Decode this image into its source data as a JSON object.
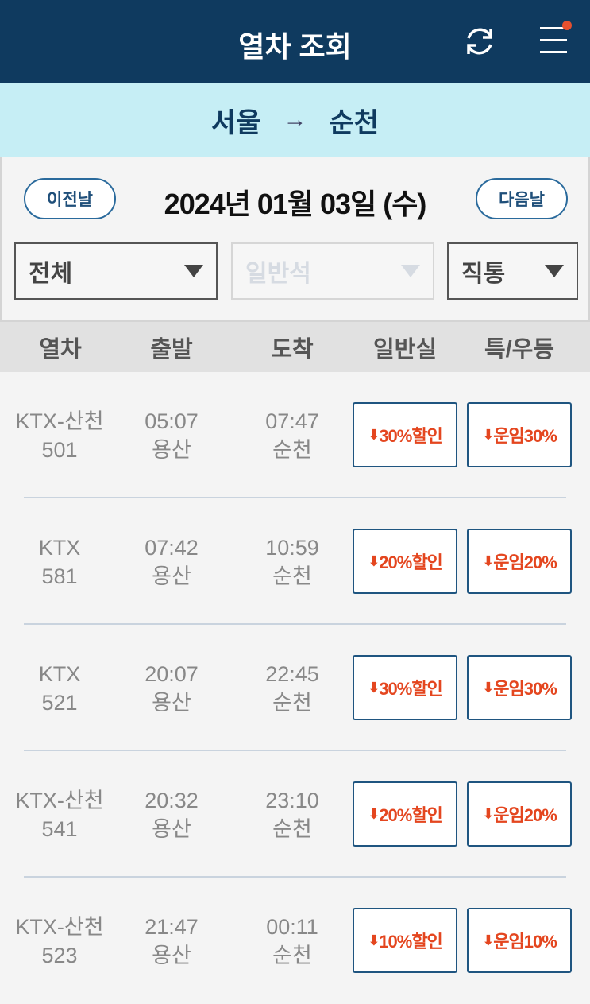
{
  "header": {
    "title": "열차 조회",
    "refresh_icon": "refresh-icon",
    "menu_icon": "hamburger-menu-icon",
    "badge_color": "#e5502f"
  },
  "route": {
    "from": "서울",
    "arrow": "→",
    "to": "순천"
  },
  "date": {
    "prev": "이전날",
    "value": "2024년 01월 03일 (수)",
    "next": "다음날"
  },
  "filters": {
    "type": "전체",
    "seat": "일반석",
    "direct": "직통"
  },
  "columns": [
    "열차",
    "출발",
    "도착",
    "일반실",
    "특/우등"
  ],
  "trains": [
    {
      "name": "KTX-산천",
      "no": "501",
      "dep_time": "05:07",
      "dep_st": "용산",
      "arr_time": "07:47",
      "arr_st": "순천",
      "general": "30%할인",
      "special": "운임30%"
    },
    {
      "name": "KTX",
      "no": "581",
      "dep_time": "07:42",
      "dep_st": "용산",
      "arr_time": "10:59",
      "arr_st": "순천",
      "general": "20%할인",
      "special": "운임20%"
    },
    {
      "name": "KTX",
      "no": "521",
      "dep_time": "20:07",
      "dep_st": "용산",
      "arr_time": "22:45",
      "arr_st": "순천",
      "general": "30%할인",
      "special": "운임30%"
    },
    {
      "name": "KTX-산천",
      "no": "541",
      "dep_time": "20:32",
      "dep_st": "용산",
      "arr_time": "23:10",
      "arr_st": "순천",
      "general": "20%할인",
      "special": "운임20%"
    },
    {
      "name": "KTX-산천",
      "no": "523",
      "dep_time": "21:47",
      "dep_st": "용산",
      "arr_time": "00:11",
      "arr_st": "순천",
      "general": "10%할인",
      "special": "운임10%"
    }
  ]
}
